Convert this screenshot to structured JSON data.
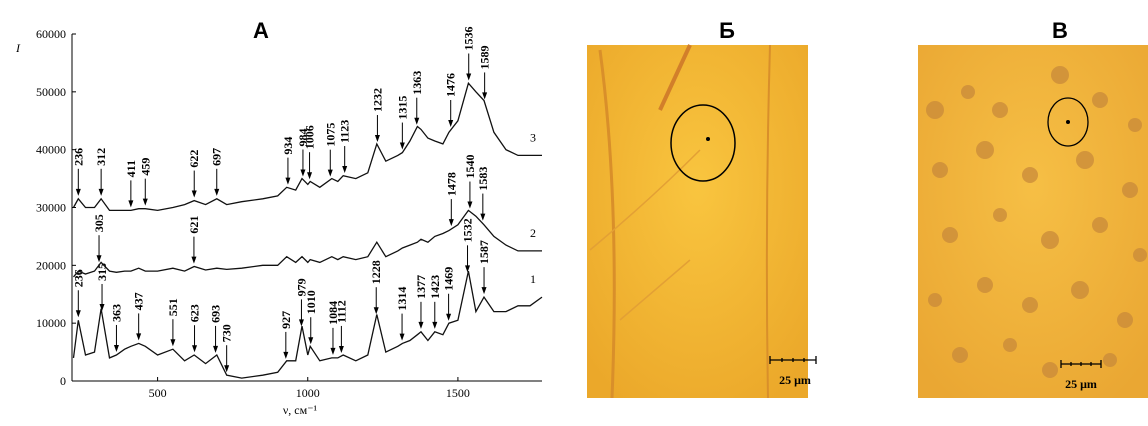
{
  "chart_data": [
    {
      "type": "line",
      "title": "А",
      "y_label": "I",
      "x_label": "ν, см⁻¹",
      "xlim": [
        215,
        1780
      ],
      "ylim": [
        0,
        60000
      ],
      "xticks": [
        500,
        1000,
        1500
      ],
      "yticks": [
        0,
        10000,
        20000,
        30000,
        40000,
        50000,
        60000
      ],
      "x": [
        220,
        236,
        260,
        290,
        312,
        340,
        363,
        390,
        411,
        437,
        459,
        500,
        551,
        590,
        622,
        660,
        697,
        730,
        780,
        850,
        900,
        930,
        960,
        981,
        1000,
        1008,
        1040,
        1080,
        1100,
        1118,
        1160,
        1200,
        1230,
        1260,
        1300,
        1315,
        1340,
        1365,
        1377,
        1400,
        1423,
        1450,
        1470,
        1500,
        1535,
        1560,
        1587,
        1620,
        1660,
        1700,
        1740,
        1780
      ],
      "series": [
        {
          "name": "1",
          "color": "#111111",
          "values": [
            4000,
            10500,
            4500,
            5000,
            12500,
            4000,
            4500,
            5500,
            6000,
            6500,
            6000,
            4500,
            5500,
            3500,
            4500,
            3000,
            4500,
            1000,
            500,
            1000,
            1500,
            3500,
            3500,
            9500,
            4500,
            6000,
            3500,
            4000,
            4000,
            4500,
            3500,
            4500,
            11500,
            5000,
            6000,
            6500,
            7000,
            8000,
            8500,
            7000,
            8500,
            8000,
            10000,
            10500,
            19000,
            12000,
            14500,
            12000,
            12000,
            13000,
            13000,
            14500
          ],
          "peaks": [
            236,
            315,
            363,
            437,
            551,
            623,
            693,
            730,
            927,
            979,
            1010,
            1084,
            1112,
            1228,
            1314,
            1377,
            1423,
            1469,
            1532,
            1587
          ]
        },
        {
          "name": "2",
          "color": "#111111",
          "values": [
            18000,
            19000,
            18500,
            19000,
            20500,
            19000,
            18800,
            19000,
            19000,
            19500,
            19000,
            19000,
            19500,
            19000,
            19800,
            19200,
            19500,
            19300,
            19500,
            20000,
            20000,
            21500,
            20500,
            21500,
            20500,
            21000,
            20500,
            21500,
            21000,
            21500,
            21000,
            21500,
            24000,
            21500,
            22500,
            23000,
            23500,
            24000,
            24500,
            24000,
            25000,
            25500,
            26000,
            27000,
            29500,
            28500,
            27000,
            25000,
            23500,
            22500,
            22500,
            22500
          ],
          "peaks": [
            305,
            621,
            1478,
            1540,
            1583
          ]
        },
        {
          "name": "3",
          "color": "#111111",
          "values": [
            30000,
            31500,
            30000,
            30000,
            31500,
            29500,
            29500,
            29500,
            29500,
            29800,
            29800,
            29500,
            30000,
            30500,
            31200,
            30500,
            31500,
            30500,
            31000,
            31500,
            32000,
            33500,
            33000,
            35000,
            34000,
            34500,
            33500,
            35000,
            34500,
            35500,
            35000,
            36000,
            41000,
            38000,
            39000,
            39500,
            41500,
            44000,
            43500,
            42000,
            41500,
            41000,
            43000,
            45000,
            51500,
            50000,
            48500,
            43000,
            40000,
            39000,
            39000,
            39000
          ],
          "peaks": [
            236,
            312,
            411,
            459,
            622,
            697,
            934,
            984,
            1006,
            1075,
            1123,
            1232,
            1315,
            1363,
            1476,
            1536,
            1589
          ]
        }
      ]
    },
    {
      "type": "image",
      "title": "Б",
      "scale_label": "25 μm"
    },
    {
      "type": "image",
      "title": "В",
      "scale_label": "25 μm"
    }
  ]
}
